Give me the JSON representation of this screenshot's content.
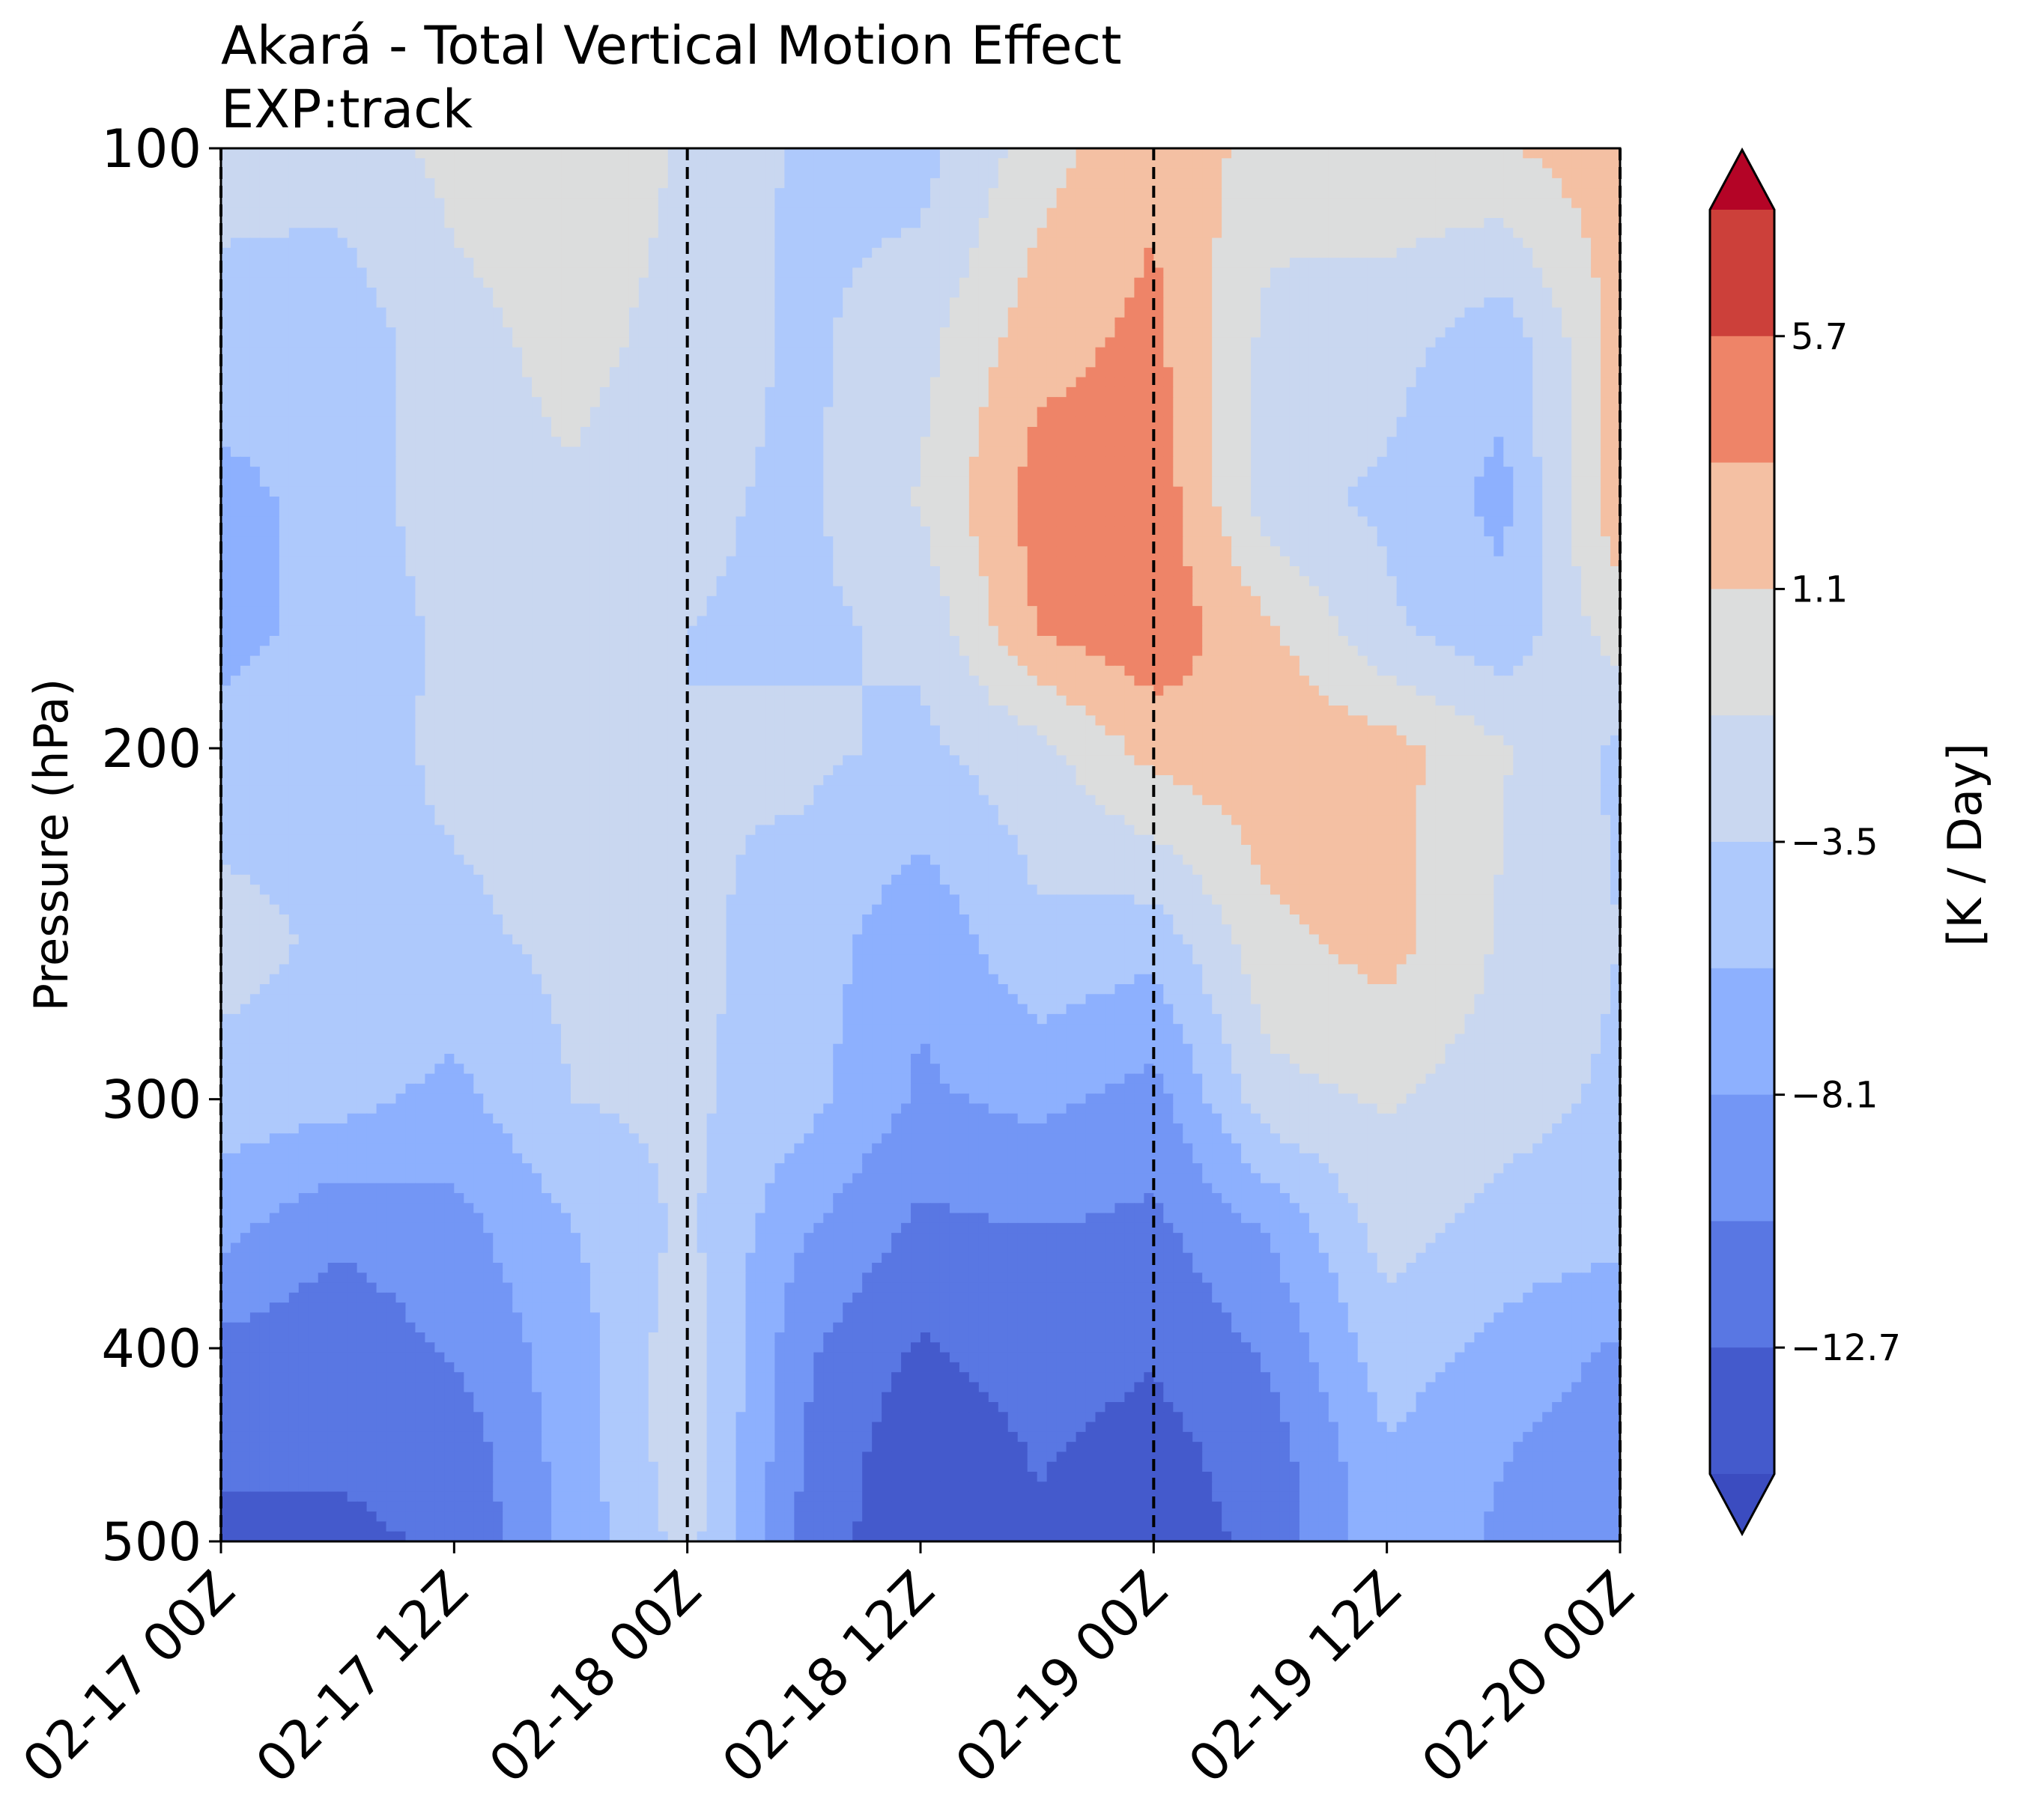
{
  "chart_data": {
    "type": "heatmap",
    "plot_kind": "filled-contour",
    "title": "Akará - Total Vertical Motion Effect",
    "subtitle": "EXP:track",
    "xlabel": "",
    "ylabel": "Pressure (hPa)",
    "x_ticks": [
      "02-17 00Z",
      "02-17 12Z",
      "02-18 00Z",
      "02-18 12Z",
      "02-19 00Z",
      "02-19 12Z",
      "02-20 00Z"
    ],
    "x_hours": [
      0,
      12,
      24,
      36,
      48,
      60,
      72
    ],
    "y_ticks": [
      100,
      200,
      300,
      400,
      500
    ],
    "y_scale": "log",
    "y_inverted": true,
    "ylim": [
      500,
      100
    ],
    "vertical_markers_hours": [
      0,
      24,
      48,
      72
    ],
    "colorbar": {
      "label": "[K / Day]",
      "tick_values": [
        5.7,
        1.1,
        -3.5,
        -8.1,
        -12.7
      ],
      "tick_labels": [
        "5.7",
        "1.1",
        "−3.5",
        "−8.1",
        "−12.7"
      ],
      "extend": "both",
      "levels_top_to_bottom": [
        {
          "range": "> 8.0",
          "color": "#b40426"
        },
        {
          "range": "5.7 to 8.0",
          "color": "#cc403a"
        },
        {
          "range": "3.4 to 5.7",
          "color": "#ee8468"
        },
        {
          "range": "1.1 to 3.4",
          "color": "#f4c0a3"
        },
        {
          "range": "-1.2 to 1.1",
          "color": "#dcdddd"
        },
        {
          "range": "-3.5 to -1.2",
          "color": "#c9d7f0"
        },
        {
          "range": "-5.8 to -3.5",
          "color": "#aec9fc"
        },
        {
          "range": "-8.1 to -5.8",
          "color": "#8db0fe"
        },
        {
          "range": "-10.4 to -8.1",
          "color": "#7396f5"
        },
        {
          "range": "-12.7 to -10.4",
          "color": "#5977e3"
        },
        {
          "range": "-15.0 to -12.7",
          "color": "#445acc"
        },
        {
          "range": "< -15.0",
          "color": "#3b4cc0"
        }
      ]
    },
    "grid_hours": [
      0,
      6,
      12,
      18,
      24,
      30,
      36,
      42,
      48,
      54,
      60,
      66,
      72
    ],
    "grid_pressure_hPa": [
      100,
      125,
      150,
      175,
      200,
      250,
      300,
      350,
      400,
      450,
      500
    ],
    "values_K_per_day": [
      [
        -2.5,
        -2.5,
        -0.5,
        0.5,
        -1.5,
        -4.0,
        -4.5,
        0.0,
        3.0,
        0.0,
        0.5,
        1.0,
        2.5
      ],
      [
        -4.5,
        -5.0,
        -2.0,
        -0.5,
        -2.0,
        -4.0,
        -2.0,
        2.5,
        4.0,
        -2.0,
        -2.5,
        -5.0,
        2.0
      ],
      [
        -6.5,
        -5.0,
        -2.0,
        -1.5,
        -3.0,
        -4.0,
        -1.0,
        4.5,
        5.0,
        -2.5,
        -4.0,
        -6.5,
        3.0
      ],
      [
        -6.5,
        -5.0,
        -3.0,
        -2.5,
        -3.5,
        -4.0,
        -3.0,
        3.5,
        5.0,
        1.5,
        -3.0,
        -5.0,
        0.0
      ],
      [
        -5.0,
        -4.5,
        -3.0,
        -2.5,
        -3.5,
        -3.0,
        -4.0,
        -2.0,
        2.0,
        3.0,
        2.0,
        -1.0,
        -4.0
      ],
      [
        -2.5,
        -4.0,
        -4.0,
        -3.0,
        -3.0,
        -4.5,
        -7.5,
        -4.0,
        -5.0,
        0.5,
        2.0,
        -1.5,
        -3.5
      ],
      [
        -4.5,
        -5.0,
        -6.5,
        -3.5,
        -3.0,
        -5.0,
        -8.5,
        -7.5,
        -9.0,
        -2.0,
        -1.0,
        -2.5,
        -4.0
      ],
      [
        -7.5,
        -10.0,
        -9.0,
        -6.0,
        -3.0,
        -8.0,
        -11.0,
        -10.5,
        -11.0,
        -8.0,
        -2.5,
        -4.5,
        -5.0
      ],
      [
        -11.0,
        -12.0,
        -10.0,
        -7.0,
        -2.0,
        -10.0,
        -13.0,
        -11.5,
        -12.5,
        -10.0,
        -4.5,
        -6.5,
        -8.5
      ],
      [
        -12.5,
        -12.5,
        -12.0,
        -7.0,
        -2.0,
        -10.5,
        -14.5,
        -12.5,
        -13.5,
        -11.5,
        -6.0,
        -8.0,
        -9.5
      ],
      [
        -13.0,
        -13.0,
        -12.5,
        -7.5,
        -2.5,
        -11.0,
        -15.0,
        -13.0,
        -14.0,
        -12.0,
        -6.5,
        -8.5,
        -10.0
      ]
    ]
  }
}
